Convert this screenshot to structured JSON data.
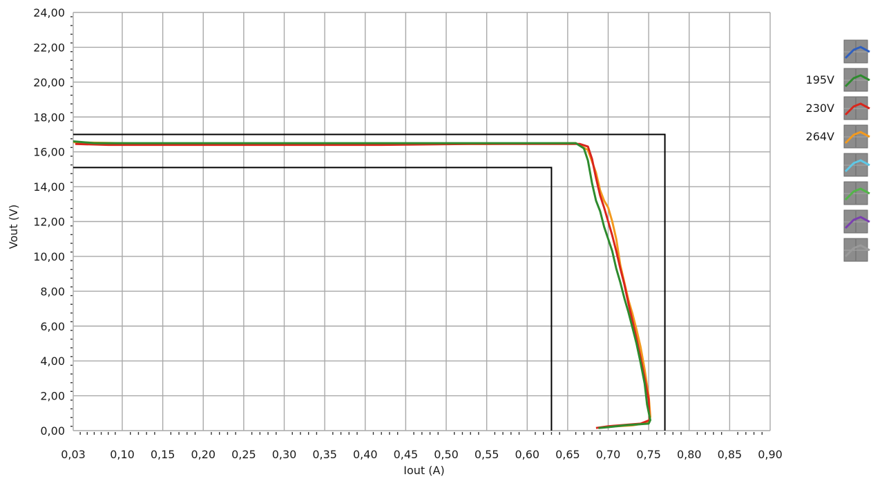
{
  "chart_data": {
    "type": "line",
    "xlabel": "Iout (A)",
    "ylabel": "Vout (V)",
    "xlim": [
      0.03,
      0.9
    ],
    "ylim": [
      0,
      24
    ],
    "x_ticks": [
      "0,03",
      "0,10",
      "0,15",
      "0,20",
      "0,25",
      "0,30",
      "0,35",
      "0,40",
      "0,45",
      "0,50",
      "0,55",
      "0,60",
      "0,65",
      "0,70",
      "0,75",
      "0,80",
      "0,85",
      "0,90"
    ],
    "y_ticks": [
      "0,00",
      "2,00",
      "4,00",
      "6,00",
      "8,00",
      "10,00",
      "12,00",
      "14,00",
      "16,00",
      "18,00",
      "20,00",
      "22,00",
      "24,00"
    ],
    "grid": true,
    "legend_position": "right",
    "legend": [
      {
        "label": "",
        "color": "#2f5fbf"
      },
      {
        "label": "195V",
        "color": "#2e8b2e"
      },
      {
        "label": "230V",
        "color": "#d9261c"
      },
      {
        "label": "264V",
        "color": "#f39a1e"
      },
      {
        "label": "",
        "color": "#5ec8e6"
      },
      {
        "label": "",
        "color": "#52b548"
      },
      {
        "label": "",
        "color": "#7a3fb0"
      },
      {
        "label": "",
        "color": "#9a9a9a"
      }
    ],
    "series": [
      {
        "name": "264V",
        "color": "#f39a1e",
        "points": [
          [
            0.03,
            16.55
          ],
          [
            0.15,
            16.45
          ],
          [
            0.4,
            16.45
          ],
          [
            0.55,
            16.45
          ],
          [
            0.66,
            16.5
          ],
          [
            0.675,
            16.1
          ],
          [
            0.685,
            14.8
          ],
          [
            0.69,
            13.8
          ],
          [
            0.695,
            13.2
          ],
          [
            0.7,
            12.8
          ],
          [
            0.705,
            12.0
          ],
          [
            0.71,
            11.0
          ],
          [
            0.715,
            9.5
          ],
          [
            0.72,
            8.5
          ],
          [
            0.725,
            7.5
          ],
          [
            0.73,
            6.7
          ],
          [
            0.735,
            5.8
          ],
          [
            0.74,
            4.8
          ],
          [
            0.745,
            3.5
          ],
          [
            0.75,
            2.0
          ],
          [
            0.752,
            0.8
          ],
          [
            0.75,
            0.45
          ],
          [
            0.73,
            0.3
          ],
          [
            0.71,
            0.25
          ]
        ]
      },
      {
        "name": "230V",
        "color": "#d9261c",
        "points": [
          [
            0.033,
            16.45
          ],
          [
            0.08,
            16.4
          ],
          [
            0.42,
            16.4
          ],
          [
            0.53,
            16.45
          ],
          [
            0.665,
            16.45
          ],
          [
            0.675,
            16.3
          ],
          [
            0.68,
            15.6
          ],
          [
            0.685,
            14.5
          ],
          [
            0.69,
            13.5
          ],
          [
            0.695,
            12.8
          ],
          [
            0.7,
            12.0
          ],
          [
            0.705,
            11.2
          ],
          [
            0.71,
            10.3
          ],
          [
            0.715,
            9.3
          ],
          [
            0.72,
            8.4
          ],
          [
            0.725,
            7.3
          ],
          [
            0.73,
            6.3
          ],
          [
            0.735,
            5.3
          ],
          [
            0.74,
            4.2
          ],
          [
            0.745,
            3.0
          ],
          [
            0.75,
            1.8
          ],
          [
            0.751,
            0.6
          ],
          [
            0.74,
            0.4
          ],
          [
            0.7,
            0.25
          ],
          [
            0.685,
            0.15
          ]
        ]
      },
      {
        "name": "195V",
        "color": "#2e8b2e",
        "points": [
          [
            0.03,
            16.6
          ],
          [
            0.06,
            16.5
          ],
          [
            0.4,
            16.5
          ],
          [
            0.6,
            16.5
          ],
          [
            0.66,
            16.5
          ],
          [
            0.67,
            16.2
          ],
          [
            0.675,
            15.5
          ],
          [
            0.68,
            14.2
          ],
          [
            0.685,
            13.2
          ],
          [
            0.69,
            12.6
          ],
          [
            0.695,
            11.7
          ],
          [
            0.7,
            11.0
          ],
          [
            0.705,
            10.3
          ],
          [
            0.71,
            9.3
          ],
          [
            0.715,
            8.5
          ],
          [
            0.72,
            7.6
          ],
          [
            0.725,
            6.8
          ],
          [
            0.73,
            5.9
          ],
          [
            0.735,
            5.0
          ],
          [
            0.74,
            3.9
          ],
          [
            0.745,
            2.7
          ],
          [
            0.748,
            1.5
          ],
          [
            0.752,
            0.6
          ],
          [
            0.75,
            0.4
          ],
          [
            0.72,
            0.3
          ],
          [
            0.7,
            0.2
          ],
          [
            0.688,
            0.15
          ]
        ]
      }
    ],
    "reference_lines": [
      {
        "points": [
          [
            0.03,
            17.0
          ],
          [
            0.77,
            17.0
          ],
          [
            0.77,
            0.0
          ]
        ],
        "color": "#000000"
      },
      {
        "points": [
          [
            0.03,
            15.1
          ],
          [
            0.63,
            15.1
          ],
          [
            0.63,
            0.0
          ]
        ],
        "color": "#000000"
      }
    ]
  }
}
